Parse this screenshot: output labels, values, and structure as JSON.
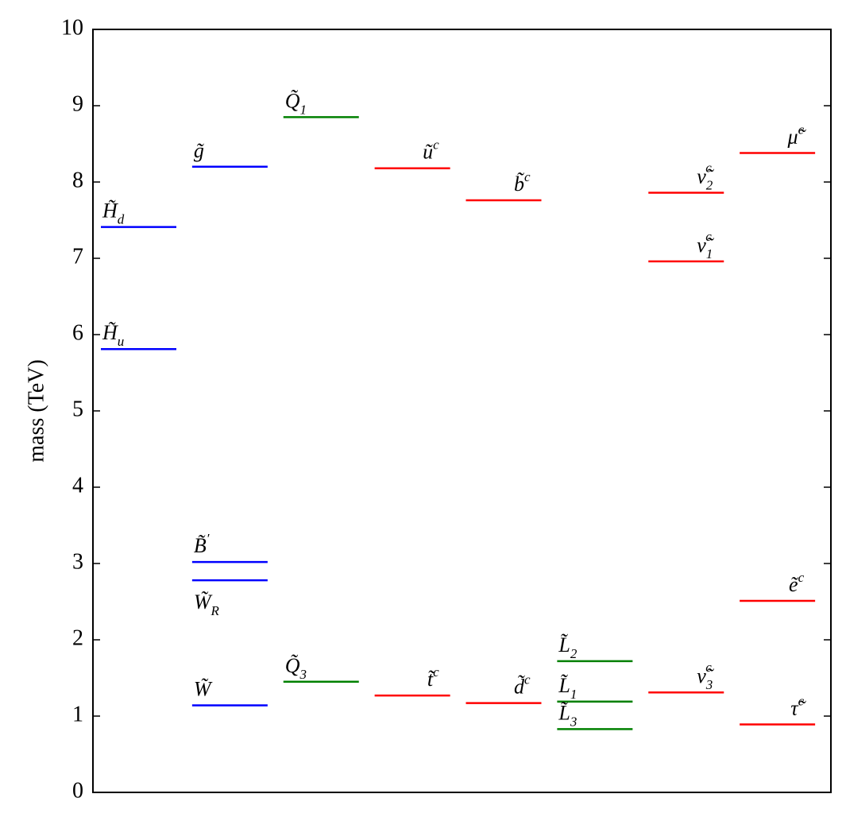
{
  "chart_data": {
    "type": "spectrum",
    "ylabel": "mass (TeV)",
    "ylim": [
      0,
      10
    ],
    "yticks": [
      0,
      1,
      2,
      3,
      4,
      5,
      6,
      7,
      8,
      9,
      10
    ],
    "columns": [
      {
        "color": "#0000ff",
        "levels": [
          {
            "label": "H̃",
            "sub": "d",
            "value": 7.41
          },
          {
            "label": "H̃",
            "sub": "u",
            "value": 5.81
          }
        ]
      },
      {
        "color": "#0000ff",
        "levels": [
          {
            "label": "g̃",
            "value": 8.2
          },
          {
            "label": "B̃",
            "sup": "′",
            "value": 3.02
          },
          {
            "label": "W̃",
            "sub": "R",
            "value": 2.78
          },
          {
            "label": "W̃",
            "value": 1.14
          }
        ]
      },
      {
        "color": "#008000",
        "levels": [
          {
            "label": "Q̃",
            "sub": "1",
            "value": 8.85
          },
          {
            "label": "Q̃",
            "sub": "3",
            "value": 1.45
          }
        ]
      },
      {
        "color": "#ff0000",
        "levels": [
          {
            "label": "ũ",
            "sup": "c",
            "value": 8.18
          },
          {
            "label": "t̃",
            "sup": "c",
            "value": 1.27
          }
        ]
      },
      {
        "color": "#ff0000",
        "levels": [
          {
            "label": "b̃",
            "sup": "c",
            "value": 7.76
          },
          {
            "label": "d̃",
            "sup": "c",
            "value": 1.17
          }
        ]
      },
      {
        "color": "#008000",
        "levels": [
          {
            "label": "L̃",
            "sub": "2",
            "value": 1.72
          },
          {
            "label": "L̃",
            "sub": "1",
            "value": 1.19
          },
          {
            "label": "L̃",
            "sub": "3",
            "value": 0.83
          }
        ]
      },
      {
        "color": "#ff0000",
        "levels": [
          {
            "label": "ν̃",
            "sub": "2",
            "sup": "c",
            "value": 7.86
          },
          {
            "label": "ν̃",
            "sub": "1",
            "sup": "c",
            "value": 6.96
          },
          {
            "label": "ν̃",
            "sub": "3",
            "sup": "c",
            "value": 1.31
          }
        ]
      },
      {
        "color": "#ff0000",
        "levels": [
          {
            "label": "μ̃",
            "sup": "c",
            "value": 8.38
          },
          {
            "label": "ẽ",
            "sup": "c",
            "value": 2.51
          },
          {
            "label": "τ̃",
            "sup": "c",
            "value": 0.89
          }
        ]
      }
    ]
  }
}
